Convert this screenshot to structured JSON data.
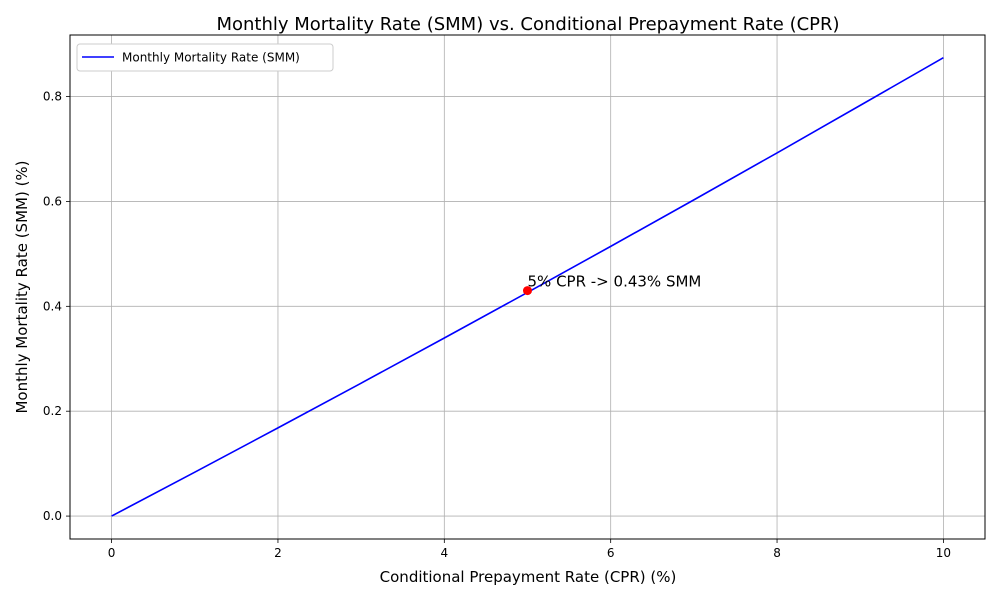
{
  "chart_data": {
    "type": "line",
    "title": "Monthly Mortality Rate (SMM) vs. Conditional Prepayment Rate (CPR)",
    "xlabel": "Conditional Prepayment Rate (CPR) (%)",
    "ylabel": "Monthly Mortality Rate (SMM) (%)",
    "xlim": [
      -0.5,
      10.5
    ],
    "ylim": [
      -0.0437,
      0.9174
    ],
    "xticks": [
      0,
      2,
      4,
      6,
      8,
      10
    ],
    "xtick_labels": [
      "0",
      "2",
      "4",
      "6",
      "8",
      "10"
    ],
    "yticks": [
      0.0,
      0.2,
      0.4,
      0.6,
      0.8
    ],
    "ytick_labels": [
      "0.0",
      "0.2",
      "0.4",
      "0.6",
      "0.8"
    ],
    "grid": true,
    "legend_position": "top-left",
    "series": [
      {
        "name": "Monthly Mortality Rate (SMM)",
        "color": "#0000ff",
        "x": [
          0,
          1,
          2,
          3,
          4,
          5,
          6,
          7,
          8,
          9,
          10
        ],
        "y": [
          0.0,
          0.0837,
          0.1682,
          0.2535,
          0.3396,
          0.4265,
          0.5143,
          0.603,
          0.6926,
          0.7832,
          0.8742
        ]
      }
    ],
    "highlight_point": {
      "x": 5,
      "y": 0.43,
      "color": "#ff0000"
    },
    "annotation": {
      "text": "5% CPR -> 0.43% SMM",
      "x": 5,
      "y": 0.43
    }
  }
}
